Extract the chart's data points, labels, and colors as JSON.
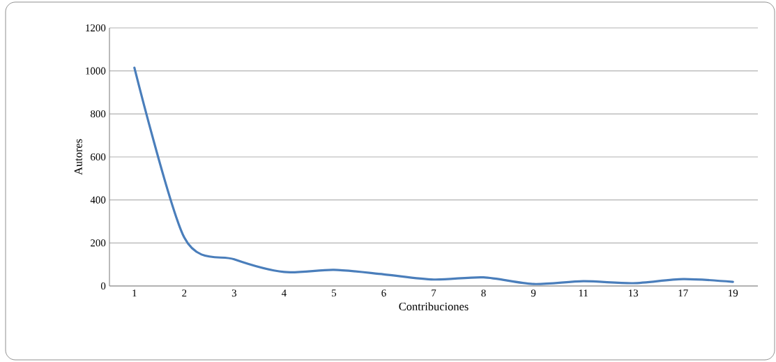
{
  "chart_data": {
    "type": "line",
    "xlabel": "Contribuciones",
    "ylabel": "Autores",
    "categories": [
      "1",
      "2",
      "3",
      "4",
      "5",
      "6",
      "7",
      "8",
      "9",
      "11",
      "13",
      "17",
      "19"
    ],
    "series": [
      {
        "color": "#4a7ebb",
        "values": [
          1015,
          225,
          124,
          65,
          75,
          54,
          30,
          40,
          9,
          22,
          13,
          32,
          19
        ]
      }
    ],
    "ylim": [
      0,
      1200
    ],
    "yticks": [
      0,
      200,
      400,
      600,
      800,
      1000,
      1200
    ],
    "grid": "y"
  }
}
